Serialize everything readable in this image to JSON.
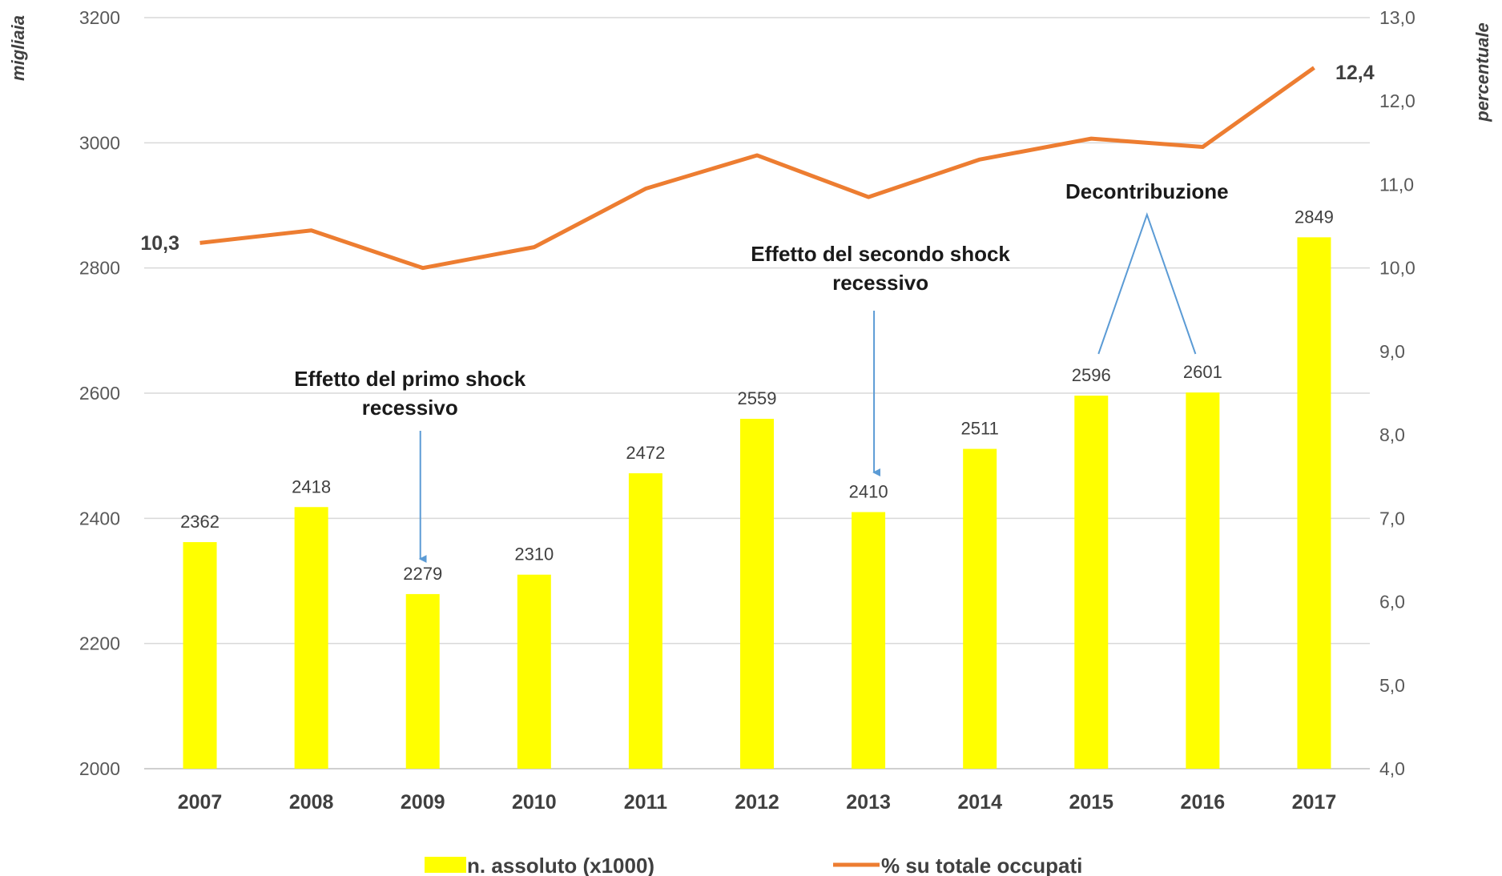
{
  "chart_data": {
    "type": "bar+line",
    "categories": [
      "2007",
      "2008",
      "2009",
      "2010",
      "2011",
      "2012",
      "2013",
      "2014",
      "2015",
      "2016",
      "2017"
    ],
    "series": [
      {
        "name": "n. assoluto (x1000)",
        "type": "bar",
        "axis": "left",
        "color": "#ffff00",
        "values": [
          2362,
          2418,
          2279,
          2310,
          2472,
          2559,
          2410,
          2511,
          2596,
          2601,
          2849
        ],
        "labels": [
          "2362",
          "2418",
          "2279",
          "2310",
          "2472",
          "2559",
          "2410",
          "2511",
          "2596",
          "2601",
          "2849"
        ]
      },
      {
        "name": "% su totale occupati",
        "type": "line",
        "axis": "right",
        "color": "#ed7d31",
        "values": [
          10.3,
          10.45,
          10.0,
          10.25,
          10.95,
          11.35,
          10.85,
          11.3,
          11.55,
          11.45,
          12.4
        ]
      }
    ],
    "ylabel_left": "migliaia",
    "ylabel_right": "percentuale",
    "ylim_left": [
      2000,
      3200
    ],
    "yticks_left": [
      "2000",
      "2200",
      "2400",
      "2600",
      "2800",
      "3000",
      "3200"
    ],
    "ylim_right": [
      4.0,
      13.0
    ],
    "yticks_right": [
      "4,0",
      "5,0",
      "6,0",
      "7,0",
      "8,0",
      "9,0",
      "10,0",
      "11,0",
      "12,0",
      "13,0"
    ],
    "line_end_labels": {
      "first": "10,3",
      "last": "12,4"
    },
    "annotations": [
      {
        "lines": [
          "Effetto del primo shock",
          "recessivo"
        ],
        "target": "2009"
      },
      {
        "lines": [
          "Effetto del secondo shock",
          "recessivo"
        ],
        "target": "2013"
      },
      {
        "lines": [
          "Decontribuzione"
        ],
        "targets": [
          "2015",
          "2016"
        ]
      }
    ],
    "grid": true,
    "legend": "bottom"
  }
}
